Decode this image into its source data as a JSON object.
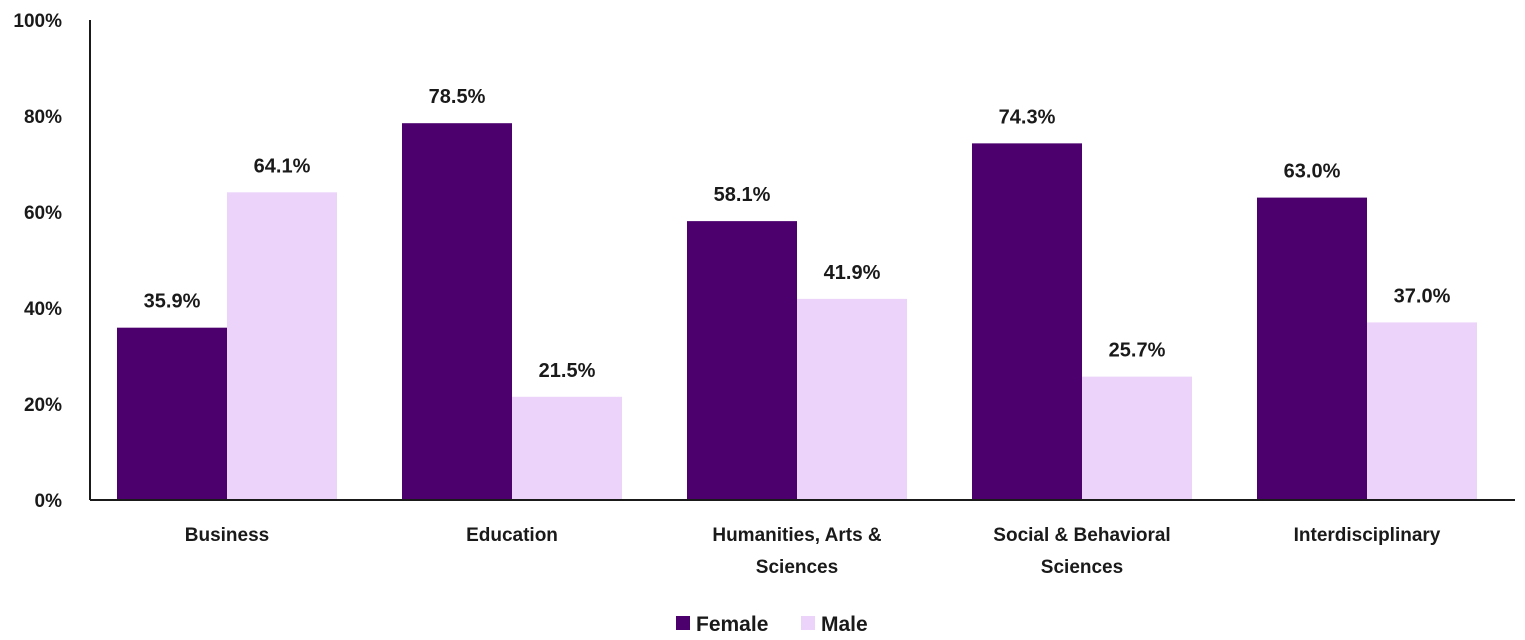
{
  "chart_data": {
    "type": "bar",
    "categories": [
      [
        "Business"
      ],
      [
        "Education"
      ],
      [
        "Humanities, Arts &",
        "Sciences"
      ],
      [
        "Social & Behavioral",
        "Sciences"
      ],
      [
        "Interdisciplinary"
      ]
    ],
    "series": [
      {
        "name": "Female",
        "color": "#4b006e",
        "values": [
          35.9,
          78.5,
          58.1,
          74.3,
          63.0
        ],
        "labels": [
          "35.9%",
          "78.5%",
          "58.1%",
          "74.3%",
          "63.0%"
        ]
      },
      {
        "name": "Male",
        "color": "#ecd3fa",
        "values": [
          64.1,
          21.5,
          41.9,
          25.7,
          37.0
        ],
        "labels": [
          "64.1%",
          "21.5%",
          "41.9%",
          "25.7%",
          "37.0%"
        ]
      }
    ],
    "yticks": [
      {
        "value": 0,
        "label": "0%"
      },
      {
        "value": 20,
        "label": "20%"
      },
      {
        "value": 40,
        "label": "40%"
      },
      {
        "value": 60,
        "label": "60%"
      },
      {
        "value": 80,
        "label": "80%"
      },
      {
        "value": 100,
        "label": "100%"
      }
    ],
    "ylim": [
      0,
      100
    ],
    "title": "",
    "xlabel": "",
    "ylabel": "",
    "grid": false,
    "legend": "bottom-center"
  }
}
